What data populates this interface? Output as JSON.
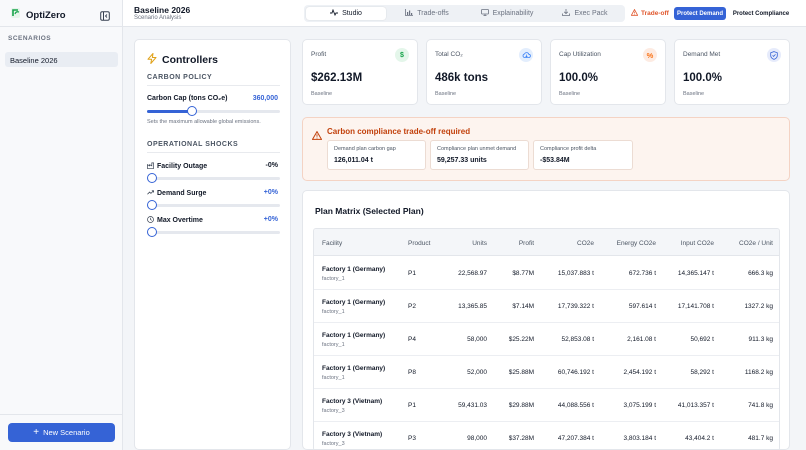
{
  "app": {
    "name": "OptiZero"
  },
  "sidebar": {
    "section": "SCENARIOS",
    "scenario": "Baseline 2026",
    "new_button": "New Scenario"
  },
  "header": {
    "title": "Baseline 2026",
    "subtitle": "Scenario Analysis"
  },
  "tabs": [
    {
      "label": "Studio"
    },
    {
      "label": "Trade-offs"
    },
    {
      "label": "Explainability"
    },
    {
      "label": "Exec Pack"
    }
  ],
  "mode": {
    "tradeoff_label": "Trade-off",
    "protect_demand": "Protect Demand",
    "protect_compliance": "Protect Compliance"
  },
  "controllers": {
    "title": "Controllers",
    "carbon_policy": "CARBON POLICY",
    "carbon_cap_label": "Carbon Cap (tons CO₂e)",
    "carbon_cap_value": "360,000",
    "carbon_cap_level": 0.34,
    "carbon_cap_help": "Sets the maximum allowable global emissions.",
    "shocks_title": "OPERATIONAL SHOCKS",
    "shocks": [
      {
        "label": "Facility Outage",
        "value": "-0%",
        "level": 0
      },
      {
        "label": "Demand Surge",
        "value": "+0%",
        "level": 0
      },
      {
        "label": "Max Overtime",
        "value": "+0%",
        "level": 0
      }
    ]
  },
  "kpis": [
    {
      "title": "Profit",
      "value": "$262.13M",
      "sub": "Baseline",
      "icon": "dollar-icon"
    },
    {
      "title": "Total CO₂",
      "value": "486k tons",
      "sub": "Baseline",
      "icon": "cloud-icon"
    },
    {
      "title": "Cap Utilization",
      "value": "100.0%",
      "sub": "Baseline",
      "icon": "percent-icon"
    },
    {
      "title": "Demand Met",
      "value": "100.0%",
      "sub": "Baseline",
      "icon": "shield-icon"
    }
  ],
  "alert": {
    "title": "Carbon compliance trade-off required",
    "metrics": [
      {
        "label": "Demand plan carbon gap",
        "value": "126,011.04 t"
      },
      {
        "label": "Compliance plan unmet demand",
        "value": "59,257.33 units"
      },
      {
        "label": "Compliance profit delta",
        "value": "-$53.84M"
      }
    ]
  },
  "matrix": {
    "title": "Plan Matrix (Selected Plan)",
    "columns": [
      "Facility",
      "Product",
      "Units",
      "Profit",
      "CO2e",
      "Energy CO2e",
      "Input CO2e",
      "CO2e / Unit"
    ],
    "rows": [
      {
        "facility": "Factory 1 (Germany)",
        "id": "factory_1",
        "product": "P1",
        "units": "22,568.97",
        "profit": "$8.77M",
        "co2e": "15,037.883 t",
        "energy": "672.736 t",
        "input": "14,365.147 t",
        "per_unit": "666.3 kg"
      },
      {
        "facility": "Factory 1 (Germany)",
        "id": "factory_1",
        "product": "P2",
        "units": "13,365.85",
        "profit": "$7.14M",
        "co2e": "17,739.322 t",
        "energy": "597.614 t",
        "input": "17,141.708 t",
        "per_unit": "1327.2 kg"
      },
      {
        "facility": "Factory 1 (Germany)",
        "id": "factory_1",
        "product": "P4",
        "units": "58,000",
        "profit": "$25.22M",
        "co2e": "52,853.08 t",
        "energy": "2,161.08 t",
        "input": "50,692 t",
        "per_unit": "911.3 kg"
      },
      {
        "facility": "Factory 1 (Germany)",
        "id": "factory_1",
        "product": "P8",
        "units": "52,000",
        "profit": "$25.88M",
        "co2e": "60,746.192 t",
        "energy": "2,454.192 t",
        "input": "58,292 t",
        "per_unit": "1168.2 kg"
      },
      {
        "facility": "Factory 3 (Vietnam)",
        "id": "factory_3",
        "product": "P1",
        "units": "59,431.03",
        "profit": "$29.88M",
        "co2e": "44,088.556 t",
        "energy": "3,075.199 t",
        "input": "41,013.357 t",
        "per_unit": "741.8 kg"
      },
      {
        "facility": "Factory 3 (Vietnam)",
        "id": "factory_3",
        "product": "P3",
        "units": "98,000",
        "profit": "$37.28M",
        "co2e": "47,207.384 t",
        "energy": "3,803.184 t",
        "input": "43,404.2 t",
        "per_unit": "481.7 kg"
      }
    ]
  },
  "colors": {
    "accent": "#3563d6",
    "warning": "#e0562b",
    "profit": "#16a34a",
    "co2": "#3b82f6",
    "cap": "#f97316",
    "demand": "#3563d6"
  }
}
